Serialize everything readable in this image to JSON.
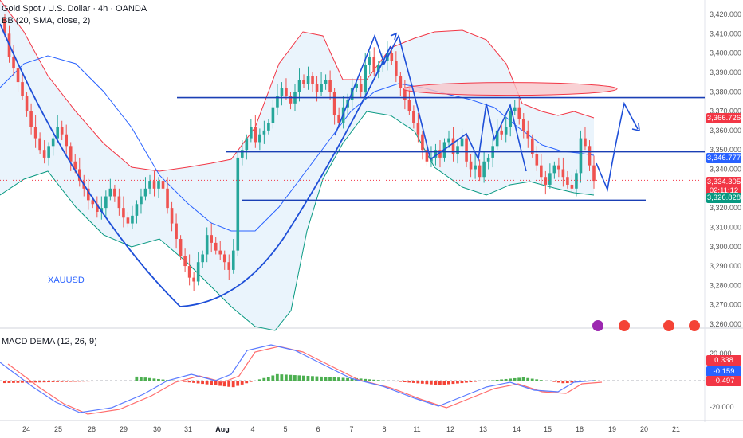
{
  "header": {
    "title": "Gold Spot / U.S. Dollar · 4h · OANDA",
    "bb_label": "BB (20, SMA, close, 2)",
    "macd_label": "MACD DEMA (12, 26, 9)",
    "symbol_watermark": "XAUUSD"
  },
  "colors": {
    "up": "#26a69a",
    "down": "#ef5350",
    "upper_band": "#f23645",
    "lower_band": "#089981",
    "basis": "#2962ff",
    "drawing": "#1e4fd8",
    "hline": "#1a3fb5",
    "band_fill": "#e3f0fb"
  },
  "chart_data": {
    "type": "candlestick",
    "price_axis": {
      "ticks": [
        "3,420.000",
        "3,410.000",
        "3,400.000",
        "3,390.000",
        "3,380.000",
        "3,370.000",
        "3,360.000",
        "3,350.000",
        "3,340.000",
        "3,330.000",
        "3,320.000",
        "3,310.000",
        "3,300.000",
        "3,290.000",
        "3,280.000",
        "3,270.000",
        "3,260.000"
      ],
      "ylim": [
        3257,
        3424
      ]
    },
    "price_tags": [
      {
        "value": "3,366.726",
        "color": "#f23645"
      },
      {
        "value": "3,346.777",
        "color": "#2962ff"
      },
      {
        "value": "3,334.305",
        "color": "#f23645"
      },
      {
        "value": "02:11:12",
        "color": "#f23645"
      },
      {
        "value": "3,326.828",
        "color": "#089981"
      }
    ],
    "x_labels": [
      {
        "t": "24",
        "bold": false
      },
      {
        "t": "25",
        "bold": false
      },
      {
        "t": "28",
        "bold": false
      },
      {
        "t": "29",
        "bold": false
      },
      {
        "t": "30",
        "bold": false
      },
      {
        "t": "31",
        "bold": false
      },
      {
        "t": "Aug",
        "bold": true
      },
      {
        "t": "4",
        "bold": false
      },
      {
        "t": "5",
        "bold": false
      },
      {
        "t": "6",
        "bold": false
      },
      {
        "t": "7",
        "bold": false
      },
      {
        "t": "8",
        "bold": false
      },
      {
        "t": "11",
        "bold": false
      },
      {
        "t": "12",
        "bold": false
      },
      {
        "t": "13",
        "bold": false
      },
      {
        "t": "14",
        "bold": false
      },
      {
        "t": "15",
        "bold": false
      },
      {
        "t": "18",
        "bold": false
      },
      {
        "t": "19",
        "bold": false
      },
      {
        "t": "20",
        "bold": false
      },
      {
        "t": "21",
        "bold": false
      }
    ],
    "horizontal_levels": [
      3377,
      3350,
      3324
    ],
    "macd_axis": {
      "ticks": [
        "20.000",
        "-20.000"
      ],
      "ylim": [
        -25,
        25
      ]
    },
    "macd_tags": [
      {
        "value": "0.338",
        "color": "#f23645"
      },
      {
        "value": "-0.159",
        "color": "#2962ff"
      },
      {
        "value": "-0.497",
        "color": "#f23645"
      }
    ]
  }
}
